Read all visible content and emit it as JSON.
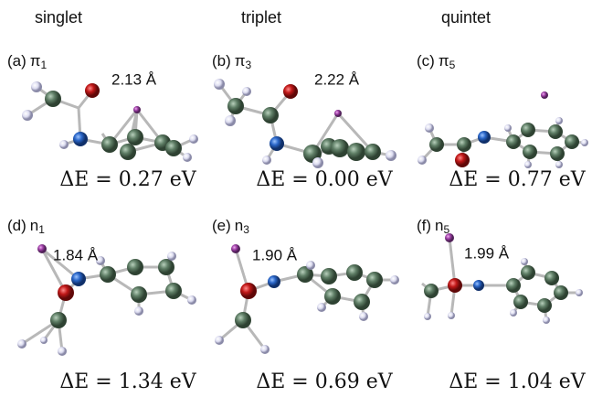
{
  "columns": [
    "singlet",
    "triplet",
    "quintet"
  ],
  "panels": [
    {
      "label": "(a)",
      "orbital": "π",
      "sub": "1",
      "distance": "2.13 Å",
      "energy": "ΔE = 0.27 eV"
    },
    {
      "label": "(b)",
      "orbital": "π",
      "sub": "3",
      "distance": "2.22 Å",
      "energy": "ΔE = 0.00 eV"
    },
    {
      "label": "(c)",
      "orbital": "π",
      "sub": "5",
      "energy": "ΔE = 0.77 eV"
    },
    {
      "label": "(d)",
      "orbital": "n",
      "sub": "1",
      "distance": "1.84 Å",
      "energy": "ΔE = 1.34 eV"
    },
    {
      "label": "(e)",
      "orbital": "n",
      "sub": "3",
      "distance": "1.90 Å",
      "energy": "ΔE = 0.69 eV"
    },
    {
      "label": "(f)",
      "orbital": "n",
      "sub": "5",
      "distance": "1.99 Å",
      "energy": "ΔE = 1.04 eV"
    }
  ]
}
